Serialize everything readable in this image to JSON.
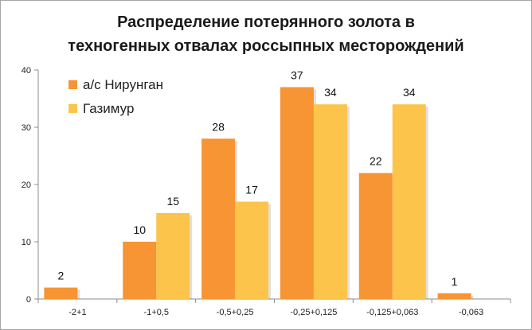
{
  "chart_data": {
    "type": "bar",
    "title_lines": [
      "Распределение потерянного золота в",
      "техногенных отвалах россыпных месторождений"
    ],
    "categories": [
      "-2+1",
      "-1+0,5",
      "-0,5+0,25",
      "-0,25+0,125",
      "-0,125+0,063",
      "-0,063"
    ],
    "series": [
      {
        "name": "а/с Нирунган",
        "values": [
          2,
          10,
          28,
          37,
          22,
          1
        ],
        "color": "#f79433"
      },
      {
        "name": "Газимур",
        "values": [
          null,
          15,
          17,
          34,
          34,
          null
        ],
        "color": "#fcc44a"
      }
    ],
    "data_labels": [
      [
        "2",
        "10",
        "28",
        "37",
        "22",
        "1"
      ],
      [
        "",
        "15",
        "17",
        "34",
        "34",
        ""
      ]
    ],
    "y_ticks": [
      "0",
      "10",
      "20",
      "30",
      "40"
    ],
    "ylim": [
      0,
      40
    ],
    "legend_position": "top-left",
    "grid": false
  }
}
